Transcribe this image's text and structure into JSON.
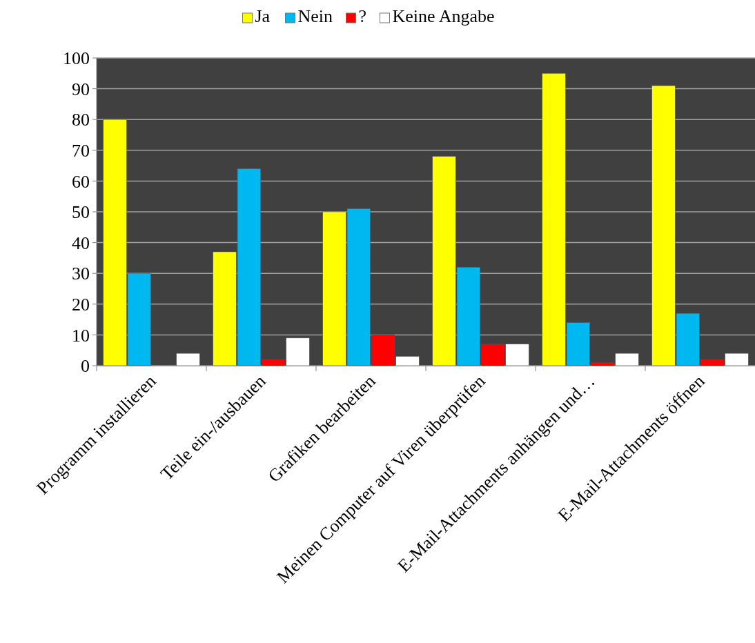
{
  "chart_data": {
    "type": "bar",
    "categories": [
      "Programm installieren",
      "Teile ein-/ausbauen",
      "Grafiken bearbeiten",
      "Meinen Computer auf Viren überprüfen",
      "E-Mail-Attachments anhängen und…",
      "E-Mail-Attachments öffnen"
    ],
    "series": [
      {
        "name": "Ja",
        "color": "#ffff00",
        "values": [
          80,
          37,
          50,
          68,
          95,
          91
        ]
      },
      {
        "name": "Nein",
        "color": "#00b8f0",
        "values": [
          30,
          64,
          51,
          32,
          14,
          17
        ]
      },
      {
        "name": "?",
        "color": "#ff0000",
        "values": [
          0,
          2,
          10,
          7,
          1,
          2
        ]
      },
      {
        "name": "Keine Angabe",
        "color": "#ffffff",
        "values": [
          4,
          9,
          3,
          7,
          4,
          4
        ]
      }
    ],
    "ylim": [
      0,
      100
    ],
    "yticks": [
      0,
      10,
      20,
      30,
      40,
      50,
      60,
      70,
      80,
      90,
      100
    ],
    "grid": "y",
    "legend": "top"
  }
}
